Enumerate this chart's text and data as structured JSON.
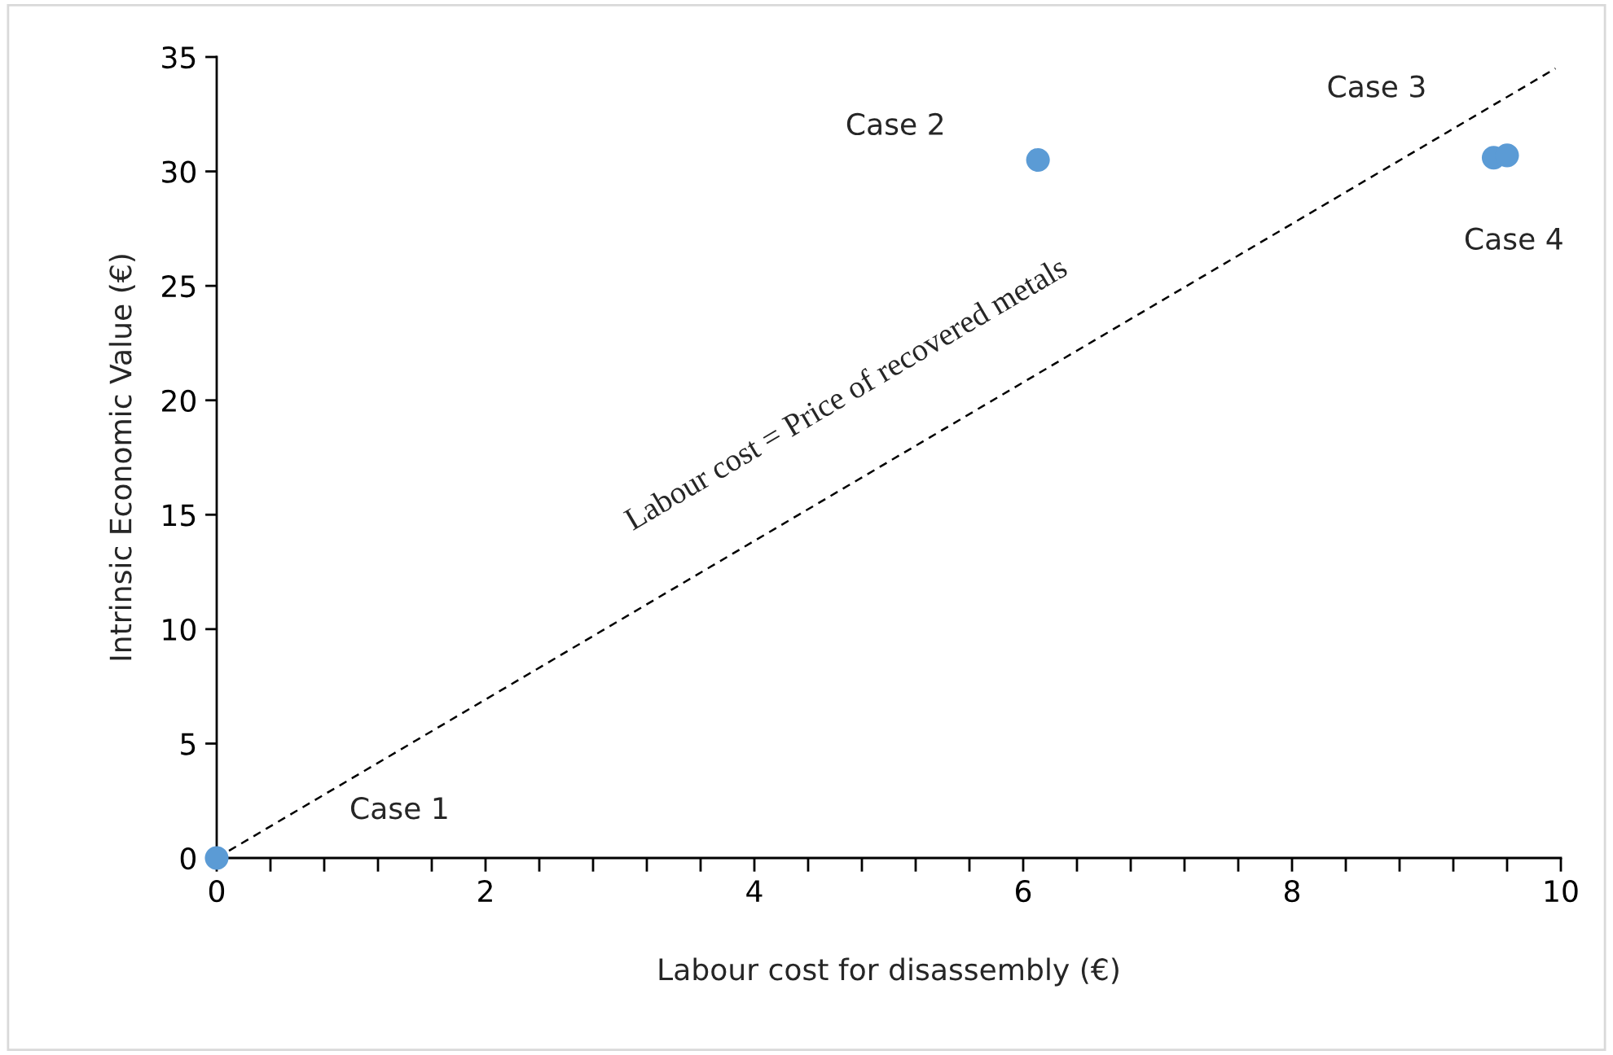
{
  "chart_data": {
    "type": "scatter",
    "xlabel": "Labour cost for disassembly (€)",
    "ylabel": "Intrinsic Economic Value (€)",
    "series": [
      {
        "color": "#5b9bd5",
        "x": [
          0,
          6.11,
          9.5,
          9.6
        ],
        "values": [
          0,
          30.5,
          30.6,
          30.7
        ],
        "marker": "circle"
      },
      {
        "type": "line",
        "color": "#000000",
        "x": [
          0,
          9.96
        ],
        "values": [
          0,
          34.5
        ],
        "line_style": "dashed",
        "marker": "none"
      }
    ],
    "annotations": [
      "Case 1",
      "Case 2",
      "Case 3",
      {
        "text": "Case 4",
        "x": 9.6,
        "y": 30.7
      },
      {
        "text": "Labour cost = Price of recovered metals",
        "x": 4.69,
        "y": 16.25
      }
    ],
    "xlim": [
      0,
      10
    ],
    "xticks": [
      0,
      {
        "value": 0.4,
        "label": null
      },
      {
        "value": 0.8,
        "label": null
      },
      {
        "value": 1.2,
        "label": null
      },
      {
        "value": 1.6,
        "label": null
      },
      2,
      {
        "value": 2.4,
        "label": null
      },
      {
        "value": 2.8,
        "label": null
      },
      {
        "value": 3.2,
        "label": null
      },
      {
        "value": 3.6,
        "label": null
      },
      4,
      {
        "value": 4.4,
        "label": null
      },
      {
        "value": 4.8,
        "label": null
      },
      {
        "value": 5.2,
        "label": null
      },
      {
        "value": 5.6,
        "label": null
      },
      6,
      {
        "value": 6.4,
        "label": null
      },
      {
        "value": 6.8,
        "label": null
      },
      {
        "value": 7.2,
        "label": null
      },
      {
        "value": 7.6,
        "label": null
      },
      8,
      {
        "value": 8.4,
        "label": null
      },
      {
        "value": 8.8,
        "label": null
      },
      {
        "value": 9.2,
        "label": null
      },
      {
        "value": 9.6,
        "label": null
      },
      10
    ],
    "ylim": [
      0,
      35
    ],
    "yticks": [
      0,
      5,
      10,
      15,
      20,
      25,
      30,
      35
    ],
    "grid": false,
    "legend": false
  }
}
